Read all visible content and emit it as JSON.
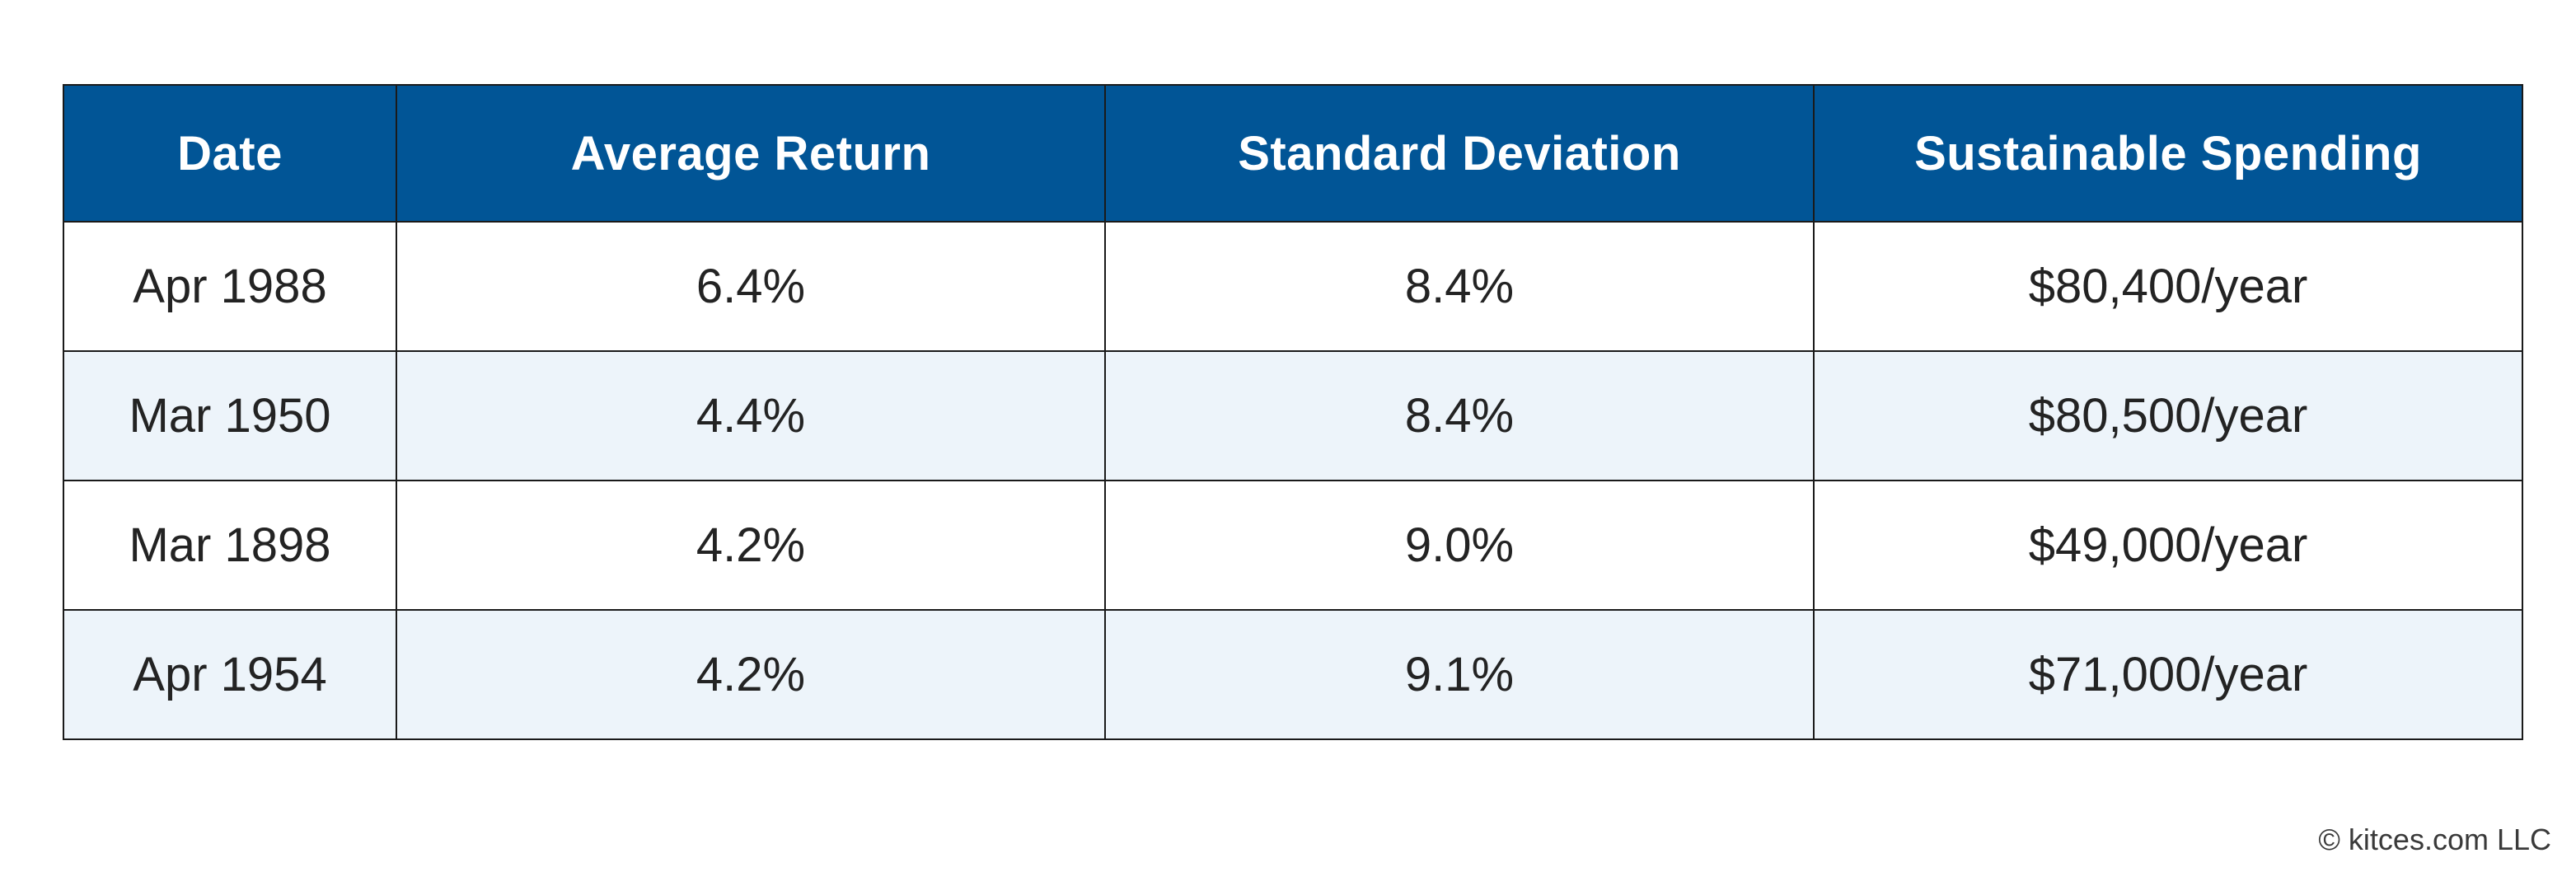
{
  "table": {
    "headers": [
      "Date",
      "Average Return",
      "Standard Deviation",
      "Sustainable Spending"
    ],
    "rows": [
      [
        "Apr 1988",
        "6.4%",
        "8.4%",
        "$80,400/year"
      ],
      [
        "Mar 1950",
        "4.4%",
        "8.4%",
        "$80,500/year"
      ],
      [
        "Mar 1898",
        "4.2%",
        "9.0%",
        "$49,000/year"
      ],
      [
        "Apr 1954",
        "4.2%",
        "9.1%",
        "$71,000/year"
      ]
    ]
  },
  "colors": {
    "header_background": "#015596",
    "header_text": "#ffffff",
    "alt_row_background": "#edf4fa",
    "border": "#1a1a1a"
  },
  "footer": {
    "copyright": "© kitces.com LLC"
  }
}
